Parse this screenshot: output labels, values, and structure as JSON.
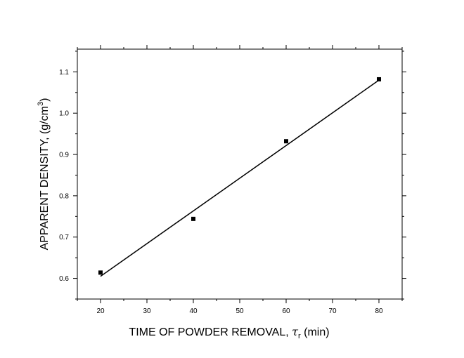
{
  "chart_data": {
    "type": "scatter",
    "title": "",
    "xlabel": {
      "main": "TIME OF POWDER REMOVAL, ",
      "symbol": "τ",
      "subscript": "r",
      "unit": " (min)"
    },
    "ylabel": {
      "main": "APPARENT DENSITY, (g/cm",
      "superscript": "3",
      "close": ")"
    },
    "xlim": [
      15,
      85
    ],
    "ylim": [
      0.55,
      1.155
    ],
    "xticks": [
      20,
      30,
      40,
      50,
      60,
      70,
      80
    ],
    "yticks": [
      0.6,
      0.7,
      0.8,
      0.9,
      1.0,
      1.1
    ],
    "xtick_labels": [
      "20",
      "30",
      "40",
      "50",
      "60",
      "70",
      "80"
    ],
    "ytick_labels": [
      "0.6",
      "0.7",
      "0.8",
      "0.9",
      "1.0",
      "1.1"
    ],
    "points": [
      {
        "x": 20,
        "y": 0.614
      },
      {
        "x": 40,
        "y": 0.744
      },
      {
        "x": 60,
        "y": 0.932
      },
      {
        "x": 80,
        "y": 1.082
      }
    ],
    "fit_line": {
      "x": [
        20,
        80
      ],
      "y": [
        0.605,
        1.08
      ]
    },
    "marker": "square",
    "grid": false,
    "colors": {
      "marker": "#000000",
      "line": "#000000",
      "axis": "#000000"
    }
  }
}
